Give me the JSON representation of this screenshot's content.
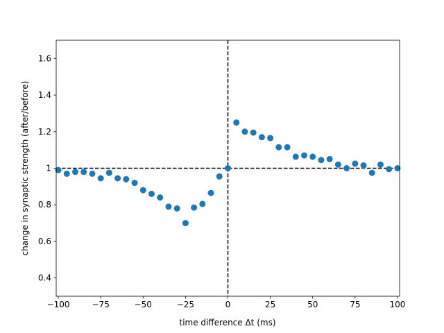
{
  "chart_data": {
    "type": "scatter",
    "x_label": "time difference Δt (ms)",
    "y_label": "change in synaptic strength (after/before)",
    "x": [
      -100,
      -95,
      -90,
      -85,
      -80,
      -75,
      -70,
      -65,
      -60,
      -55,
      -50,
      -45,
      -40,
      -35,
      -30,
      -25,
      -20,
      -15,
      -10,
      -5,
      0,
      5,
      10,
      15,
      20,
      25,
      30,
      35,
      40,
      45,
      50,
      55,
      60,
      65,
      70,
      75,
      80,
      85,
      90,
      95,
      100
    ],
    "values": [
      0.99,
      0.97,
      0.98,
      0.98,
      0.97,
      0.945,
      0.975,
      0.945,
      0.94,
      0.92,
      0.88,
      0.86,
      0.84,
      0.79,
      0.78,
      0.7,
      0.785,
      0.805,
      0.865,
      0.955,
      1.0,
      1.25,
      1.2,
      1.195,
      1.17,
      1.165,
      1.115,
      1.115,
      1.063,
      1.07,
      1.063,
      1.045,
      1.05,
      1.02,
      1.0,
      1.025,
      1.015,
      0.975,
      1.02,
      0.995,
      1.0
    ],
    "color": "#1f77b4",
    "xlim": [
      -101.25,
      101.25
    ],
    "ylim": [
      0.3,
      1.7
    ],
    "xticks": [
      {
        "value": -100,
        "label": "−100"
      },
      {
        "value": -75,
        "label": "−75"
      },
      {
        "value": -50,
        "label": "−50"
      },
      {
        "value": -25,
        "label": "−25"
      },
      0,
      25,
      50,
      75,
      100
    ],
    "yticks": [
      0.4,
      0.6,
      0.8,
      1.0,
      1.2,
      1.4,
      1.6
    ],
    "hline": 1.0,
    "vline": 0,
    "grid": false
  }
}
